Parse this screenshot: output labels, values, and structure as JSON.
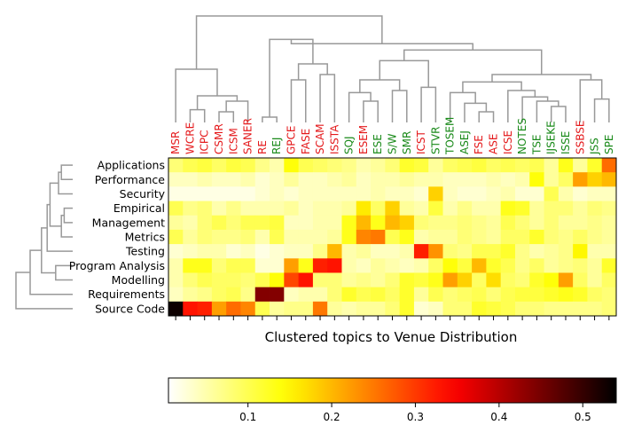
{
  "chart_data": {
    "type": "heatmap",
    "title": "Clustered topics to Venue Distribution",
    "venue_colors": {
      "red": "#e41a1c",
      "green": "#1a8a1a"
    },
    "columns": [
      {
        "name": "MSR",
        "group": "red"
      },
      {
        "name": "WCRE",
        "group": "red"
      },
      {
        "name": "ICPC",
        "group": "red"
      },
      {
        "name": "CSMR",
        "group": "red"
      },
      {
        "name": "ICSM",
        "group": "red"
      },
      {
        "name": "SANER",
        "group": "red"
      },
      {
        "name": "RE",
        "group": "red"
      },
      {
        "name": "REJ",
        "group": "green"
      },
      {
        "name": "GPCE",
        "group": "red"
      },
      {
        "name": "FASE",
        "group": "red"
      },
      {
        "name": "SCAM",
        "group": "red"
      },
      {
        "name": "ISSTA",
        "group": "red"
      },
      {
        "name": "SQJ",
        "group": "green"
      },
      {
        "name": "ESEM",
        "group": "red"
      },
      {
        "name": "ESE",
        "group": "green"
      },
      {
        "name": "S/W",
        "group": "green"
      },
      {
        "name": "SMR",
        "group": "green"
      },
      {
        "name": "ICST",
        "group": "red"
      },
      {
        "name": "STVR",
        "group": "green"
      },
      {
        "name": "TOSEM",
        "group": "green"
      },
      {
        "name": "ASEJ",
        "group": "green"
      },
      {
        "name": "FSE",
        "group": "red"
      },
      {
        "name": "ASE",
        "group": "red"
      },
      {
        "name": "ICSE",
        "group": "red"
      },
      {
        "name": "NOTES",
        "group": "green"
      },
      {
        "name": "TSE",
        "group": "green"
      },
      {
        "name": "IJSEKE",
        "group": "green"
      },
      {
        "name": "ISSE",
        "group": "green"
      },
      {
        "name": "SSBSE",
        "group": "red"
      },
      {
        "name": "JSS",
        "group": "green"
      },
      {
        "name": "SPE",
        "group": "green"
      }
    ],
    "rows": [
      "Applications",
      "Performance",
      "Security",
      "Empirical",
      "Management",
      "Metrics",
      "Testing",
      "Program Analysis",
      "Modelling",
      "Requirements",
      "Source Code"
    ],
    "values": [
      [
        0.08,
        0.1,
        0.11,
        0.09,
        0.11,
        0.1,
        0.07,
        0.05,
        0.14,
        0.1,
        0.09,
        0.08,
        0.07,
        0.05,
        0.06,
        0.08,
        0.12,
        0.11,
        0.06,
        0.09,
        0.1,
        0.11,
        0.09,
        0.1,
        0.09,
        0.1,
        0.06,
        0.13,
        0.06,
        0.12,
        0.26
      ],
      [
        0.04,
        0.04,
        0.05,
        0.04,
        0.04,
        0.05,
        0.03,
        0.04,
        0.06,
        0.04,
        0.04,
        0.05,
        0.06,
        0.04,
        0.05,
        0.05,
        0.06,
        0.05,
        0.05,
        0.04,
        0.04,
        0.04,
        0.05,
        0.04,
        0.05,
        0.14,
        0.06,
        0.09,
        0.22,
        0.18,
        0.2
      ],
      [
        0.02,
        0.02,
        0.02,
        0.02,
        0.02,
        0.02,
        0.03,
        0.04,
        0.03,
        0.04,
        0.04,
        0.04,
        0.04,
        0.04,
        0.05,
        0.04,
        0.04,
        0.03,
        0.18,
        0.04,
        0.03,
        0.03,
        0.04,
        0.05,
        0.03,
        0.03,
        0.1,
        0.05,
        0.03,
        0.04,
        0.04
      ],
      [
        0.1,
        0.07,
        0.08,
        0.05,
        0.07,
        0.05,
        0.05,
        0.05,
        0.06,
        0.04,
        0.05,
        0.05,
        0.06,
        0.16,
        0.09,
        0.18,
        0.06,
        0.05,
        0.11,
        0.05,
        0.07,
        0.05,
        0.05,
        0.13,
        0.12,
        0.06,
        0.08,
        0.08,
        0.06,
        0.08,
        0.07
      ],
      [
        0.06,
        0.05,
        0.08,
        0.1,
        0.08,
        0.1,
        0.1,
        0.11,
        0.04,
        0.04,
        0.05,
        0.05,
        0.13,
        0.2,
        0.13,
        0.2,
        0.18,
        0.08,
        0.07,
        0.07,
        0.08,
        0.07,
        0.06,
        0.1,
        0.08,
        0.06,
        0.08,
        0.06,
        0.06,
        0.07,
        0.06
      ],
      [
        0.1,
        0.06,
        0.08,
        0.07,
        0.07,
        0.08,
        0.05,
        0.1,
        0.05,
        0.05,
        0.05,
        0.06,
        0.13,
        0.24,
        0.25,
        0.1,
        0.13,
        0.05,
        0.06,
        0.06,
        0.08,
        0.07,
        0.06,
        0.09,
        0.09,
        0.12,
        0.08,
        0.07,
        0.09,
        0.07,
        0.06
      ],
      [
        0.03,
        0.04,
        0.05,
        0.05,
        0.03,
        0.04,
        0.02,
        0.03,
        0.04,
        0.04,
        0.07,
        0.2,
        0.05,
        0.06,
        0.04,
        0.04,
        0.05,
        0.32,
        0.23,
        0.08,
        0.07,
        0.1,
        0.1,
        0.12,
        0.07,
        0.05,
        0.06,
        0.07,
        0.15,
        0.05,
        0.05
      ],
      [
        0.05,
        0.13,
        0.13,
        0.08,
        0.1,
        0.1,
        0.03,
        0.03,
        0.22,
        0.13,
        0.32,
        0.33,
        0.05,
        0.04,
        0.06,
        0.05,
        0.04,
        0.05,
        0.09,
        0.14,
        0.11,
        0.2,
        0.12,
        0.1,
        0.07,
        0.09,
        0.06,
        0.07,
        0.08,
        0.06,
        0.12
      ],
      [
        0.05,
        0.08,
        0.1,
        0.09,
        0.09,
        0.08,
        0.1,
        0.14,
        0.29,
        0.33,
        0.08,
        0.08,
        0.06,
        0.07,
        0.06,
        0.08,
        0.12,
        0.11,
        0.13,
        0.22,
        0.18,
        0.09,
        0.17,
        0.09,
        0.08,
        0.12,
        0.14,
        0.22,
        0.09,
        0.06,
        0.09
      ],
      [
        0.04,
        0.06,
        0.07,
        0.09,
        0.1,
        0.07,
        0.44,
        0.44,
        0.04,
        0.05,
        0.05,
        0.08,
        0.12,
        0.1,
        0.11,
        0.09,
        0.12,
        0.06,
        0.1,
        0.08,
        0.09,
        0.1,
        0.08,
        0.1,
        0.11,
        0.11,
        0.12,
        0.13,
        0.12,
        0.09,
        0.08
      ],
      [
        0.53,
        0.33,
        0.32,
        0.22,
        0.26,
        0.24,
        0.1,
        0.06,
        0.07,
        0.07,
        0.25,
        0.06,
        0.05,
        0.06,
        0.06,
        0.08,
        0.12,
        0.03,
        0.04,
        0.08,
        0.08,
        0.12,
        0.11,
        0.1,
        0.08,
        0.08,
        0.07,
        0.07,
        0.07,
        0.07,
        0.08
      ]
    ],
    "color_scale": {
      "name": "hot_r",
      "vmin": 0.005,
      "vmax": 0.54
    },
    "colorbar": {
      "ticks": [
        0.1,
        0.2,
        0.3,
        0.4,
        0.5
      ],
      "tick_labels": [
        "0.1",
        "0.2",
        "0.3",
        "0.4",
        "0.5"
      ]
    },
    "dendrogram_line_color": "#999999"
  }
}
